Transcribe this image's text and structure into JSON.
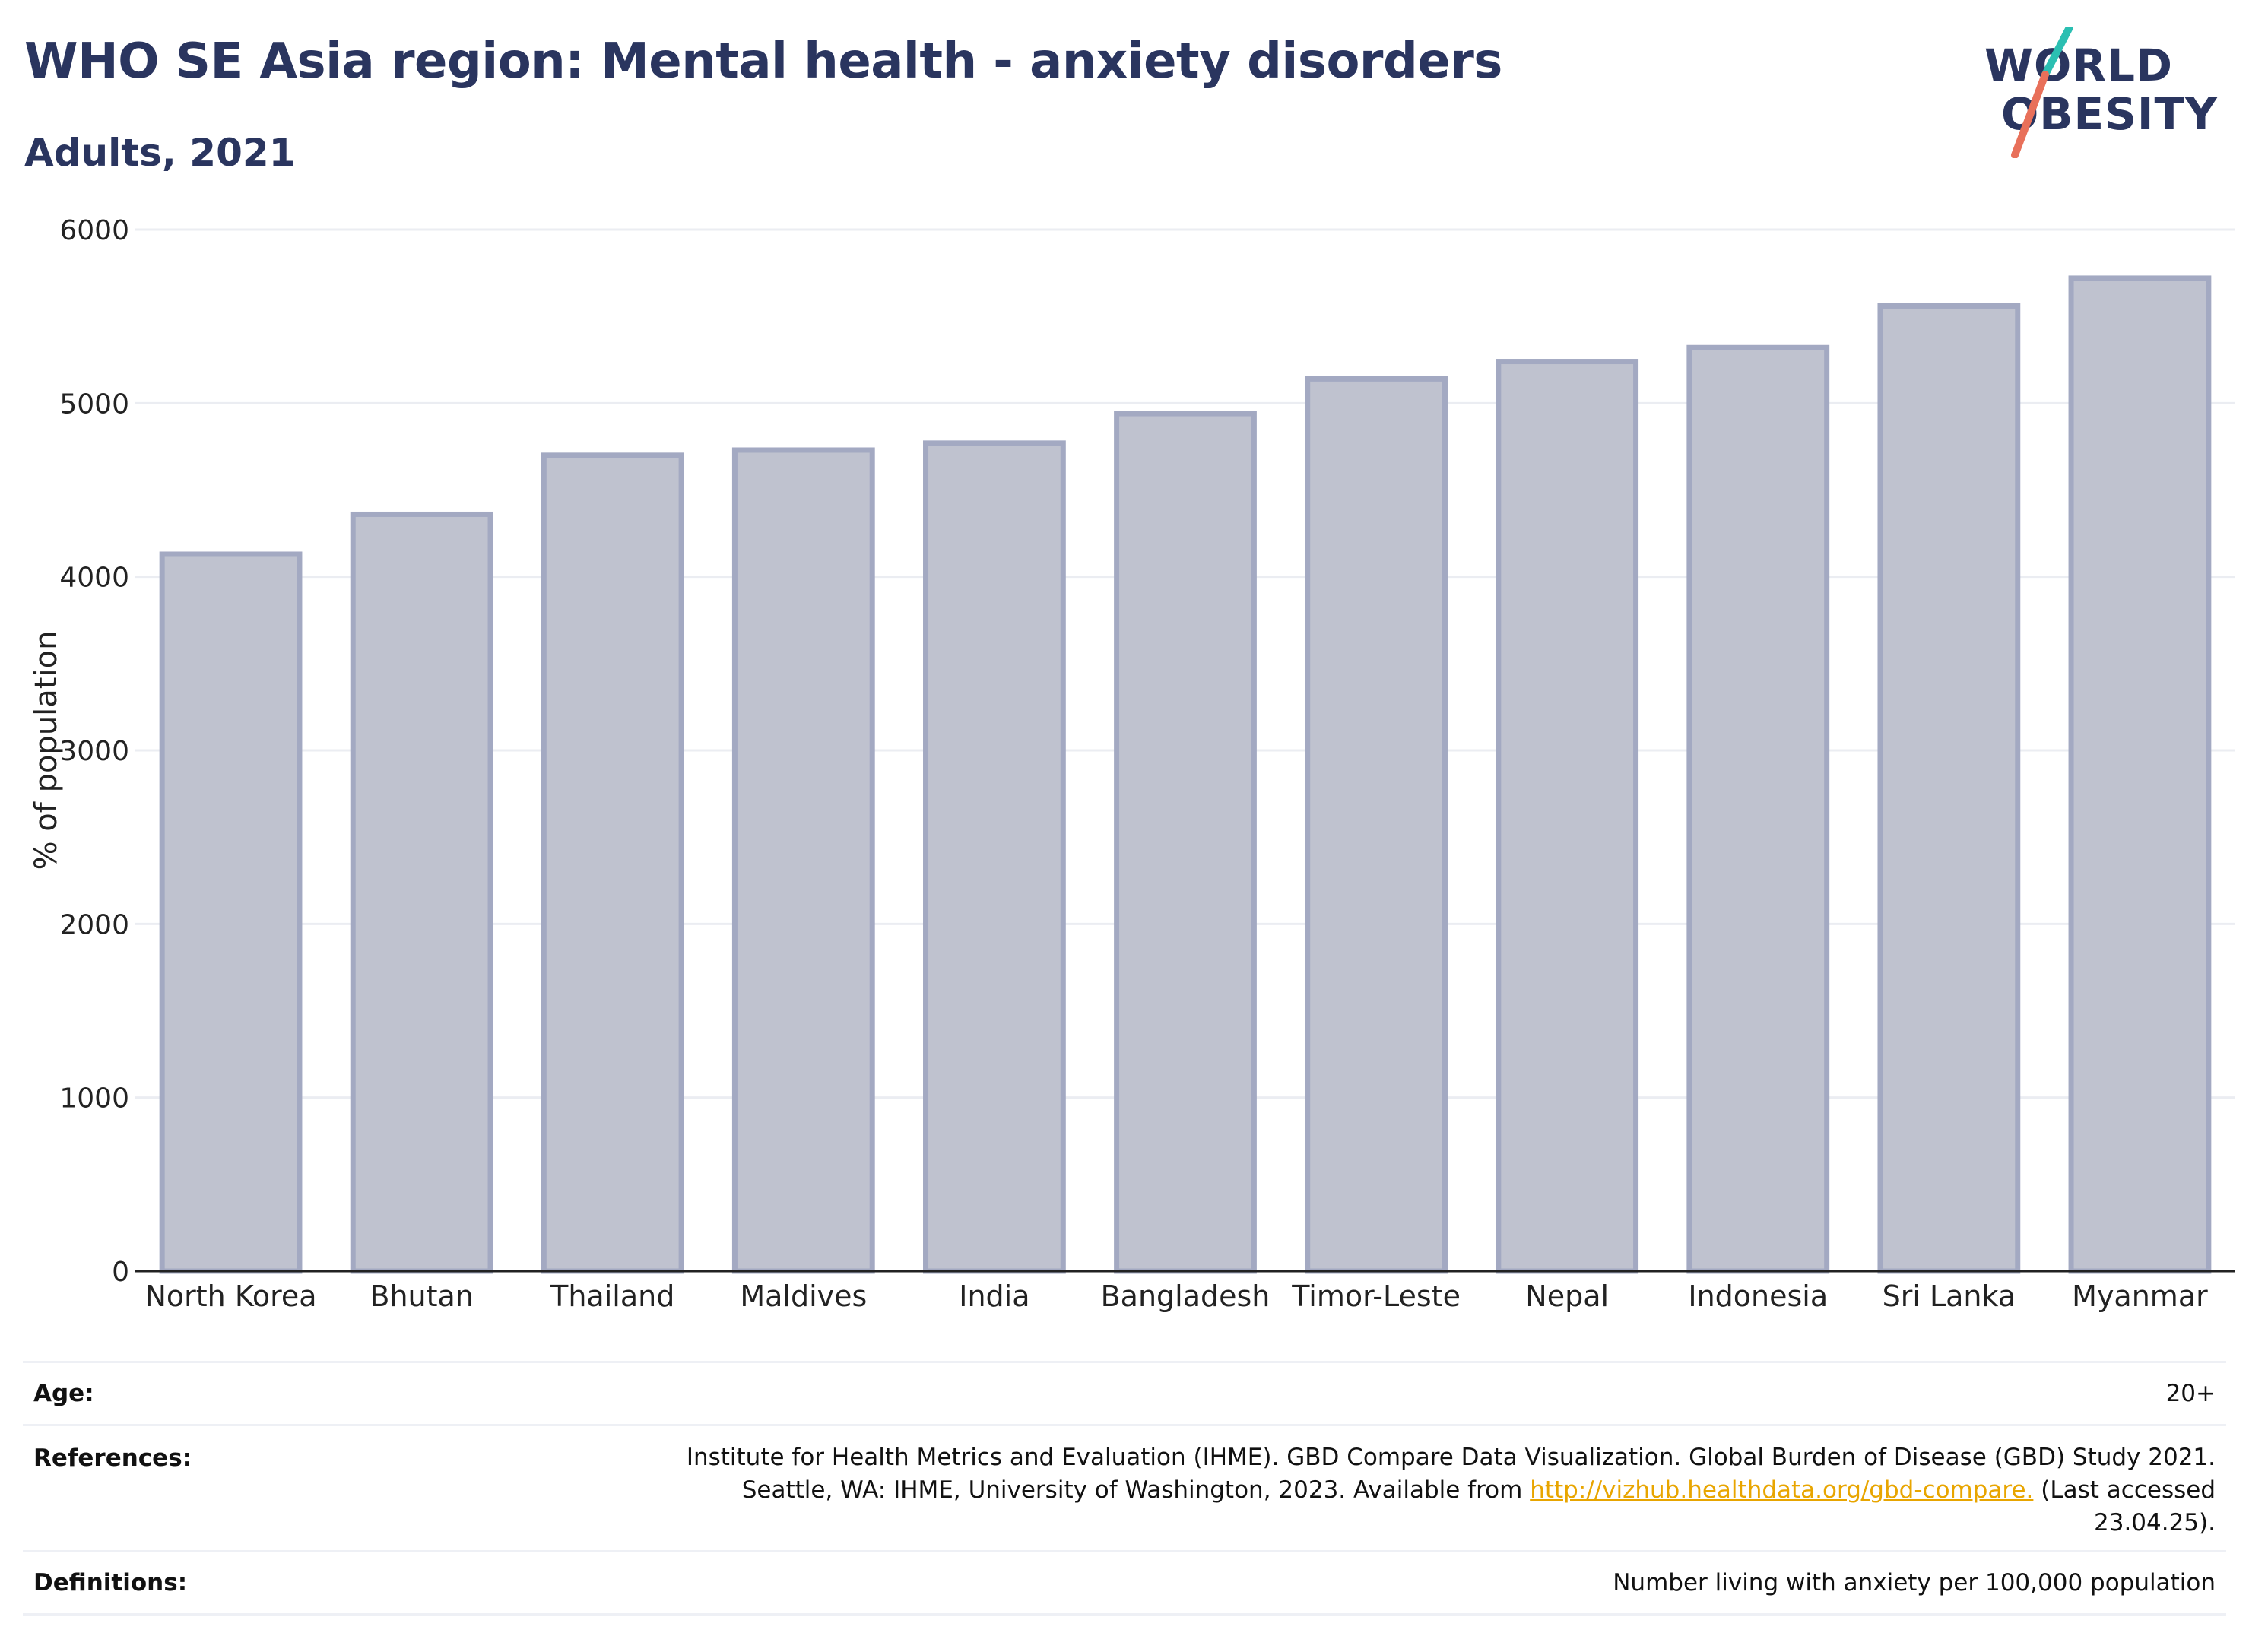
{
  "header": {
    "title": "WHO SE Asia region: Mental health - anxiety disorders",
    "subtitle": "Adults, 2021"
  },
  "logo": {
    "line1": "WORLD",
    "line2": "OBESITY",
    "colors": {
      "text": "#2a355f",
      "slash_top": "#2bbfb2",
      "slash_bottom": "#e8705a"
    }
  },
  "chart_data": {
    "type": "bar",
    "title": "",
    "xlabel": "",
    "ylabel": "% of population",
    "ylim": [
      0,
      6000
    ],
    "yticks": [
      0,
      1000,
      2000,
      3000,
      4000,
      5000,
      6000
    ],
    "categories": [
      "North Korea",
      "Bhutan",
      "Thailand",
      "Maldives",
      "India",
      "Bangladesh",
      "Timor-Leste",
      "Nepal",
      "Indonesia",
      "Sri Lanka",
      "Myanmar"
    ],
    "values": [
      4130,
      4360,
      4700,
      4730,
      4770,
      4940,
      5140,
      5240,
      5320,
      5560,
      5720
    ],
    "grid": true,
    "colors": {
      "bar_fill": "#bfc2cf",
      "bar_stroke": "#a3a9c2",
      "grid": "#ebedf2",
      "axis": "#222222"
    }
  },
  "info": {
    "age_label": "Age:",
    "age_value": "20+",
    "references_label": "References:",
    "references_line1": "Institute for Health Metrics and Evaluation (IHME). GBD Compare Data Visualization. Global Burden of Disease (GBD) Study 2021.",
    "references_line2_pre": "Seattle, WA: IHME, University of Washington, 2023. Available from ",
    "references_link": "http://vizhub.healthdata.org/gbd-compare.",
    "references_line2_post": " (Last accessed",
    "references_line3": "23.04.25).",
    "definitions_label": "Definitions:",
    "definitions_value": "Number living with anxiety per 100,000 population"
  }
}
